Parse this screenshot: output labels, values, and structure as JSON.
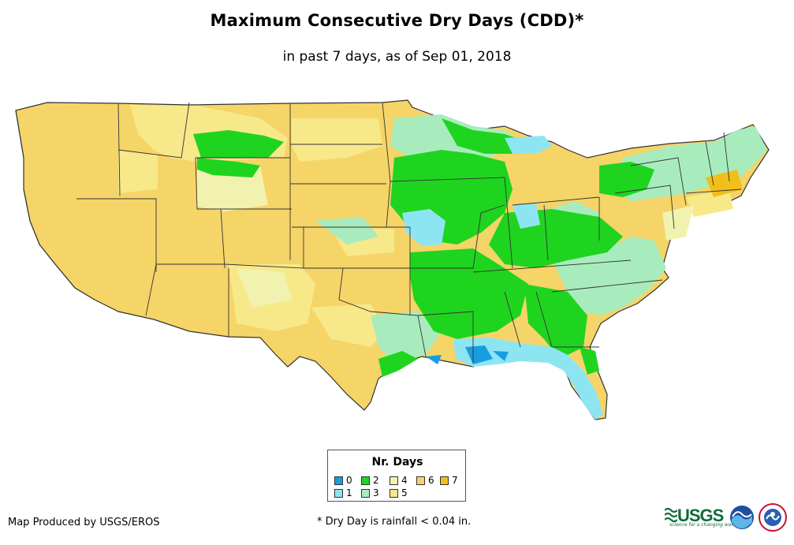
{
  "title": "Maximum Consecutive Dry Days (CDD)*",
  "subtitle": "in past 7 days, as of Sep 01, 2018",
  "legend": {
    "title": "Nr. Days",
    "items": [
      {
        "label": "0",
        "color": "#1a9de0"
      },
      {
        "label": "1",
        "color": "#8ee5f2"
      },
      {
        "label": "2",
        "color": "#1fd41f"
      },
      {
        "label": "3",
        "color": "#a8ecbe"
      },
      {
        "label": "4",
        "color": "#f2f2b0"
      },
      {
        "label": "5",
        "color": "#f7e88a"
      },
      {
        "label": "6",
        "color": "#f5d468"
      },
      {
        "label": "7",
        "color": "#f2bf1a"
      }
    ]
  },
  "credit": "Map Produced by USGS/EROS",
  "footnote": "* Dry Day is rainfall < 0.04 in.",
  "logos": {
    "usgs_text": "USGS",
    "usgs_tagline": "science for a changing world"
  },
  "colors": {
    "state_border": "#333333",
    "ocean": "#ffffff"
  }
}
